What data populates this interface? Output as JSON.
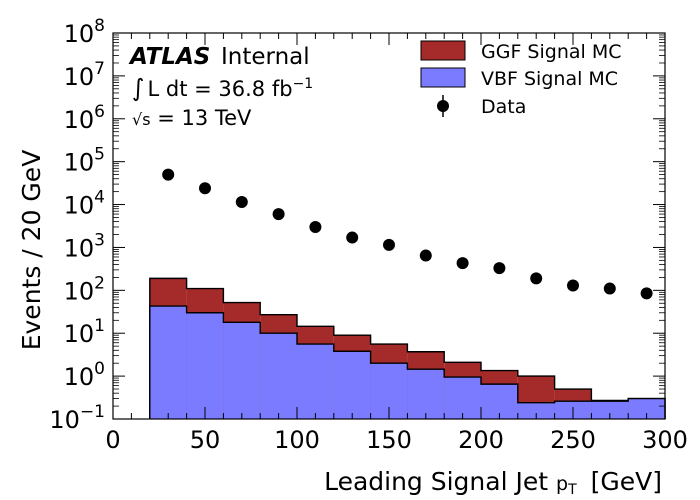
{
  "chart_data": {
    "type": "bar",
    "xlabel_main": "Leading Signal Jet ",
    "xlabel_sub": "p",
    "xlabel_subscript": "T",
    "xlabel_unit": "[GeV]",
    "ylabel": "Events / 20 GeV",
    "xlim": [
      0,
      300
    ],
    "ylim": [
      0.1,
      100000000
    ],
    "yscale": "log",
    "x_ticks": [
      0,
      50,
      100,
      150,
      200,
      250,
      300
    ],
    "y_tick_exponents": [
      -1,
      0,
      1,
      2,
      3,
      4,
      5,
      6,
      7,
      8
    ],
    "y_tick_base": "10",
    "y_tick_neg_sign": "−",
    "bin_edges": [
      20,
      40,
      60,
      80,
      100,
      120,
      140,
      160,
      180,
      200,
      220,
      240,
      260,
      280,
      300
    ],
    "series": [
      {
        "name": "GGF Signal MC",
        "role": "stack-total",
        "color": "#a52a2a",
        "values": [
          190,
          110,
          52,
          27,
          14.5,
          9,
          5.6,
          3.7,
          2.1,
          1.35,
          1.0,
          0.5,
          0.27,
          0.3
        ]
      },
      {
        "name": "VBF Signal MC",
        "role": "stack-base",
        "color": "#7b7bff",
        "values": [
          43,
          30,
          18,
          10,
          5.6,
          3.8,
          2.0,
          1.45,
          0.95,
          0.65,
          0.24,
          0.26,
          0.26,
          0.3
        ]
      },
      {
        "name": "Data",
        "role": "points",
        "color": "#000000",
        "x": [
          30,
          50,
          70,
          90,
          110,
          130,
          150,
          170,
          190,
          210,
          230,
          250,
          270,
          290
        ],
        "values": [
          50000,
          24000,
          11500,
          6000,
          3000,
          1700,
          1150,
          650,
          430,
          330,
          190,
          130,
          110,
          85
        ]
      }
    ],
    "annotations": {
      "experiment": "ATLAS",
      "label": "Internal",
      "lumi_integral": "∫",
      "lumi_text": "L dt = 36.8 fb",
      "lumi_sup": "−1",
      "energy_sqrt": "√s",
      "energy_text": " = 13 TeV"
    },
    "legend_position": "top-right",
    "grid": false
  }
}
